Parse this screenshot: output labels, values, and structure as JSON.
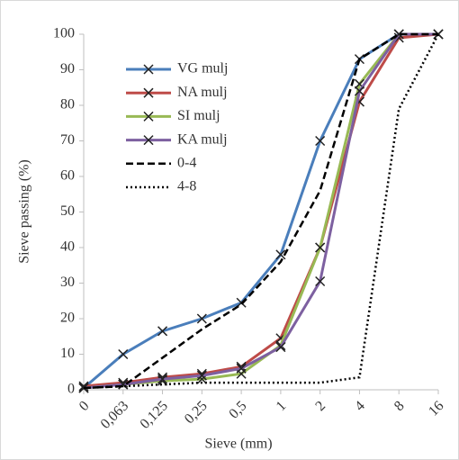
{
  "chart_data": {
    "type": "line",
    "xlabel": "Sieve (mm)",
    "ylabel": "Sieve passing (%)",
    "categories": [
      "0",
      "0,063",
      "0,125",
      "0,25",
      "0,5",
      "1",
      "2",
      "4",
      "8",
      "16"
    ],
    "ylim": [
      0,
      100
    ],
    "yticks": [
      0,
      10,
      20,
      30,
      40,
      50,
      60,
      70,
      80,
      90,
      100
    ],
    "grid": false,
    "legend": "upper-left",
    "series": [
      {
        "name": "VG mulj",
        "color": "#4a7ebb",
        "style": "solid",
        "marker": "x",
        "values": [
          0.5,
          10,
          16.5,
          20,
          24.5,
          38,
          70,
          93,
          100,
          100
        ]
      },
      {
        "name": "NA mulj",
        "color": "#be4b48",
        "style": "solid",
        "marker": "x",
        "values": [
          1,
          2,
          3.5,
          4.5,
          6.5,
          14.5,
          40,
          81,
          99,
          100
        ]
      },
      {
        "name": "SI mulj",
        "color": "#98b954",
        "style": "solid",
        "marker": "x",
        "values": [
          0.5,
          1.5,
          2.5,
          3,
          4.5,
          12.5,
          40,
          86,
          100,
          100
        ]
      },
      {
        "name": "KA mulj",
        "color": "#7d60a0",
        "style": "solid",
        "marker": "x",
        "values": [
          0.5,
          1.5,
          3,
          4,
          6,
          12,
          30.5,
          84,
          100,
          100
        ]
      },
      {
        "name": "0-4",
        "color": "#000000",
        "style": "dashed",
        "marker": "none",
        "values": [
          0.5,
          1,
          9,
          17,
          24,
          36,
          56,
          93,
          100,
          100
        ]
      },
      {
        "name": "4-8",
        "color": "#000000",
        "style": "dotted",
        "marker": "none",
        "values": [
          0.5,
          1,
          1.5,
          2,
          2,
          2,
          2,
          3.5,
          79,
          100
        ]
      }
    ]
  }
}
